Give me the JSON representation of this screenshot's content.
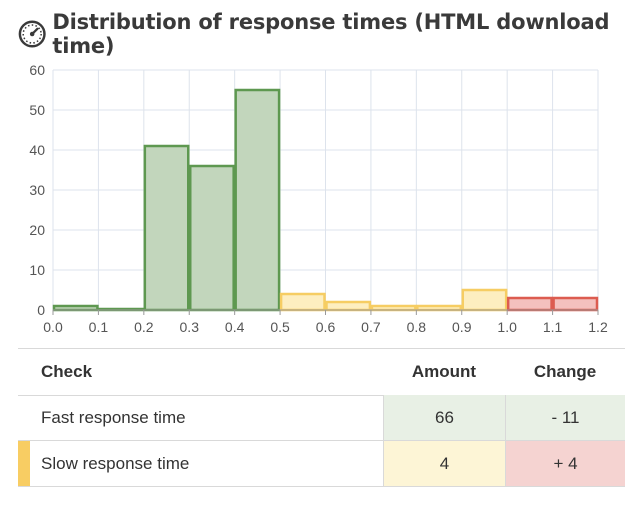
{
  "header": {
    "title": "Distribution of response times (HTML download time)",
    "icon": "speedometer-icon"
  },
  "colors": {
    "fast": "#c2d6bc",
    "fast_border": "#5e9850",
    "medium": "#fdeec0",
    "medium_border": "#f6cd63",
    "slow": "#f4c1be",
    "slow_border": "#dc5c50",
    "fast_bg": "#e8f0e5",
    "slow_bg": "#fdf5d6",
    "change_bad_bg": "#f5d3d1",
    "stripe": "#f8cd63"
  },
  "chart_data": {
    "type": "bar",
    "title": "",
    "xlabel": "",
    "ylabel": "",
    "x_ticks": [
      "0.0",
      "0.1",
      "0.2",
      "0.3",
      "0.4",
      "0.5",
      "0.6",
      "0.7",
      "0.8",
      "0.9",
      "1.0",
      "1.1",
      "1.2"
    ],
    "y_ticks": [
      "0",
      "10",
      "20",
      "30",
      "40",
      "50",
      "60"
    ],
    "xlim": [
      0.0,
      1.2
    ],
    "ylim": [
      0,
      60
    ],
    "grid": true,
    "bins": [
      {
        "from": 0.0,
        "to": 0.1,
        "value": 1,
        "zone": "fast"
      },
      {
        "from": 0.1,
        "to": 0.2,
        "value": 0,
        "zone": "fast"
      },
      {
        "from": 0.2,
        "to": 0.3,
        "value": 41,
        "zone": "fast"
      },
      {
        "from": 0.3,
        "to": 0.4,
        "value": 36,
        "zone": "fast"
      },
      {
        "from": 0.4,
        "to": 0.5,
        "value": 55,
        "zone": "fast"
      },
      {
        "from": 0.5,
        "to": 0.6,
        "value": 4,
        "zone": "medium"
      },
      {
        "from": 0.6,
        "to": 0.7,
        "value": 2,
        "zone": "medium"
      },
      {
        "from": 0.7,
        "to": 0.8,
        "value": 1,
        "zone": "medium"
      },
      {
        "from": 0.8,
        "to": 0.9,
        "value": 1,
        "zone": "medium"
      },
      {
        "from": 0.9,
        "to": 1.0,
        "value": 5,
        "zone": "medium"
      },
      {
        "from": 1.0,
        "to": 1.1,
        "value": 3,
        "zone": "slow"
      },
      {
        "from": 1.1,
        "to": 1.2,
        "value": 3,
        "zone": "slow"
      }
    ]
  },
  "table": {
    "headers": {
      "check": "Check",
      "amount": "Amount",
      "change": "Change"
    },
    "rows": [
      {
        "check": "Fast response time",
        "amount": "66",
        "change": "- 11"
      },
      {
        "check": "Slow response time",
        "amount": "4",
        "change": "+ 4"
      }
    ]
  }
}
